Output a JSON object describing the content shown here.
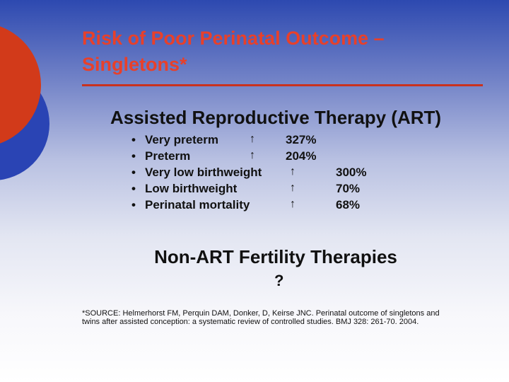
{
  "slide": {
    "title_line1": "Risk of Poor Perinatal Outcome –",
    "title_line2": "Singletons*",
    "section1_heading": "Assisted Reproductive Therapy (ART)",
    "items": [
      {
        "bullet": "•",
        "label": "Very preterm",
        "arrow": "↑",
        "value": "327%"
      },
      {
        "bullet": "•",
        "label": "Preterm",
        "arrow": "↑",
        "value": "204%"
      },
      {
        "bullet": "•",
        "label": "Very low birthweight",
        "arrow": "↑",
        "value": "300%"
      },
      {
        "bullet": "•",
        "label": "Low birthweight",
        "arrow": "↑",
        "value": "70%"
      },
      {
        "bullet": "•",
        "label": "Perinatal mortality",
        "arrow": "↑",
        "value": "68%"
      }
    ],
    "section2_heading": "Non-ART Fertility Therapies",
    "section2_value": "?",
    "source_line1": "*SOURCE: Helmerhorst FM, Perquin DAM, Donker, D, Keirse JNC. Perinatal outcome of singletons and",
    "source_line2": "twins after assisted conception: a systematic review of controlled studies. BMJ 328: 261-70. 2004."
  },
  "colors": {
    "title": "#e8402a",
    "rule": "#c9321f",
    "deco_red": "#d23a1a",
    "deco_blue": "#2a44b4",
    "text": "#111111"
  }
}
